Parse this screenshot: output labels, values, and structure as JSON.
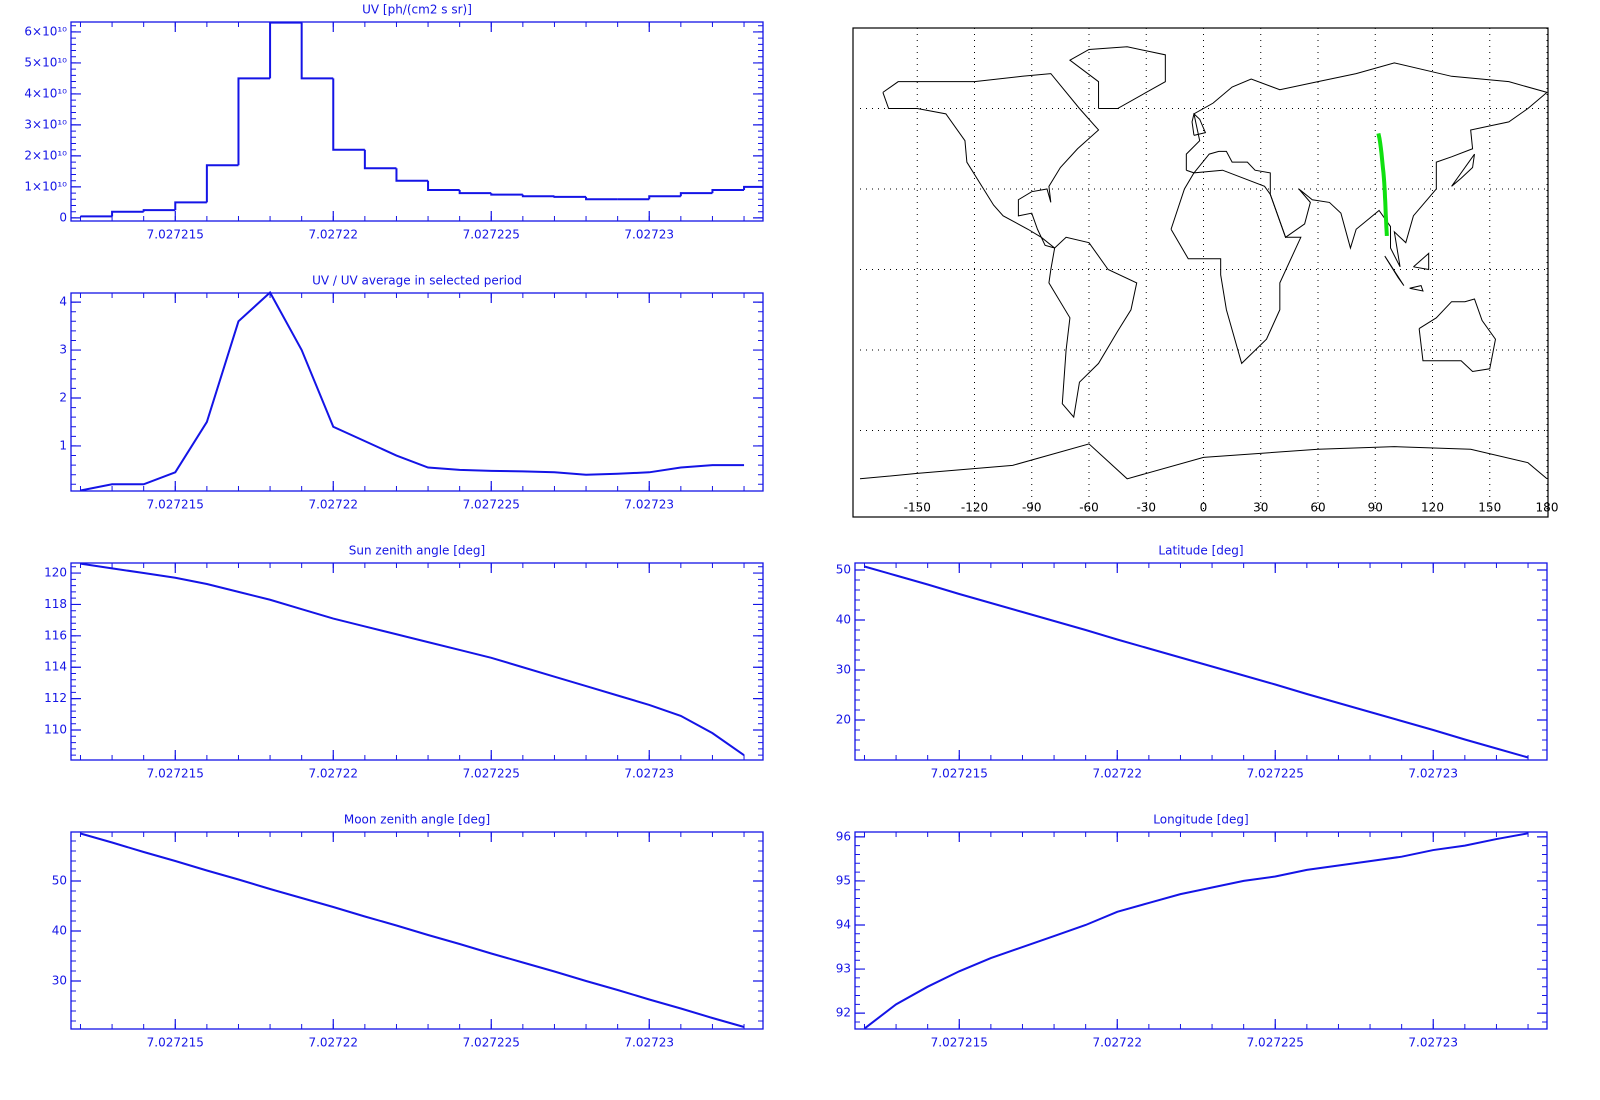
{
  "chart_data": [
    {
      "type": "line",
      "step": true,
      "title": "UV [ph/(cm2 s sr)]",
      "color": "#1414e6",
      "x": [
        7.027212,
        7.027213,
        7.027214,
        7.027215,
        7.027216,
        7.027217,
        7.027218,
        7.027219,
        7.02722,
        7.027221,
        7.027222,
        7.027223,
        7.027224,
        7.027225,
        7.027226,
        7.027227,
        7.027228,
        7.027229,
        7.02723,
        7.027231,
        7.027232,
        7.027233
      ],
      "values": [
        500000000,
        2000000000,
        2500000000,
        5000000000,
        17000000000,
        45000000000,
        63000000000,
        45000000000,
        22000000000,
        16000000000,
        12000000000,
        9000000000,
        8000000000,
        7500000000,
        7000000000,
        6800000000,
        6000000000,
        6000000000,
        7000000000,
        8000000000,
        9000000000,
        10000000000
      ],
      "xlim": [
        7.0272117,
        7.0272336
      ],
      "xticks": [
        7.027215,
        7.02722,
        7.027225,
        7.02723
      ],
      "ylim": [
        -1000000000,
        63200000000
      ],
      "yticks": [
        0,
        {
          "value": 10000000000,
          "label": "1×10¹⁰"
        },
        {
          "value": 20000000000,
          "label": "2×10¹⁰"
        },
        {
          "value": 30000000000,
          "label": "3×10¹⁰"
        },
        {
          "value": 40000000000,
          "label": "4×10¹⁰"
        },
        {
          "value": 50000000000,
          "label": "5×10¹⁰"
        },
        {
          "value": 60000000000,
          "label": "6×10¹⁰"
        }
      ]
    },
    {
      "type": "line",
      "title": "UV / UV average in selected period",
      "color": "#1414e6",
      "x": [
        7.027212,
        7.027213,
        7.027214,
        7.027215,
        7.027216,
        7.027217,
        7.027218,
        7.027219,
        7.02722,
        7.027221,
        7.027222,
        7.027223,
        7.027224,
        7.027225,
        7.027226,
        7.027227,
        7.027228,
        7.027229,
        7.02723,
        7.027231,
        7.027232,
        7.027233
      ],
      "values": [
        0.07,
        0.2,
        0.2,
        0.45,
        1.5,
        3.6,
        4.2,
        3.0,
        1.4,
        1.1,
        0.8,
        0.55,
        0.5,
        0.48,
        0.47,
        0.45,
        0.4,
        0.42,
        0.45,
        0.55,
        0.6,
        0.6
      ],
      "xlim": [
        7.0272117,
        7.0272336
      ],
      "xticks": [
        7.027215,
        7.02722,
        7.027225,
        7.02723
      ],
      "ylim": [
        0.06,
        4.19
      ],
      "yticks": [
        1,
        2,
        3,
        4
      ]
    },
    {
      "type": "line",
      "title": "Sun zenith angle [deg]",
      "color": "#1414e6",
      "x": [
        7.027212,
        7.027213,
        7.027214,
        7.027215,
        7.027216,
        7.027217,
        7.027218,
        7.027219,
        7.02722,
        7.027221,
        7.027222,
        7.027223,
        7.027224,
        7.027225,
        7.027226,
        7.027227,
        7.027228,
        7.027229,
        7.02723,
        7.027231,
        7.027232,
        7.027233
      ],
      "values": [
        120.6,
        120.3,
        120.0,
        119.7,
        119.3,
        118.8,
        118.3,
        117.7,
        117.1,
        116.6,
        116.1,
        115.6,
        115.1,
        114.6,
        114.0,
        113.4,
        112.8,
        112.2,
        111.6,
        110.9,
        109.8,
        108.4
      ],
      "xlim": [
        7.0272117,
        7.0272336
      ],
      "xticks": [
        7.027215,
        7.02722,
        7.027225,
        7.02723
      ],
      "ylim": [
        108.09,
        120.64
      ],
      "yticks": [
        110,
        112,
        114,
        116,
        118,
        120
      ]
    },
    {
      "type": "line",
      "title": "Latitude [deg]",
      "color": "#1414e6",
      "x": [
        7.027212,
        7.027213,
        7.027214,
        7.027215,
        7.027216,
        7.027217,
        7.027218,
        7.027219,
        7.02722,
        7.027221,
        7.027222,
        7.027223,
        7.027224,
        7.027225,
        7.027226,
        7.027227,
        7.027228,
        7.027229,
        7.02723,
        7.027231,
        7.027232,
        7.027233
      ],
      "values": [
        50.7,
        48.9,
        47.1,
        45.2,
        43.4,
        41.6,
        39.8,
        38.0,
        36.1,
        34.3,
        32.5,
        30.7,
        28.9,
        27.1,
        25.2,
        23.4,
        21.6,
        19.8,
        18.0,
        16.1,
        14.3,
        12.5
      ],
      "xlim": [
        7.0272117,
        7.0272336
      ],
      "xticks": [
        7.027215,
        7.02722,
        7.027225,
        7.02723
      ],
      "ylim": [
        12.0,
        51.4
      ],
      "yticks": [
        20,
        30,
        40,
        50
      ]
    },
    {
      "type": "line",
      "title": "Moon zenith angle [deg]",
      "color": "#1414e6",
      "x": [
        7.027212,
        7.027213,
        7.027214,
        7.027215,
        7.027216,
        7.027217,
        7.027218,
        7.027219,
        7.02722,
        7.027221,
        7.027222,
        7.027223,
        7.027224,
        7.027225,
        7.027226,
        7.027227,
        7.027228,
        7.027229,
        7.02723,
        7.027231,
        7.027232,
        7.027233
      ],
      "values": [
        59.5,
        57.7,
        55.8,
        54.0,
        52.1,
        50.3,
        48.4,
        46.6,
        44.8,
        42.9,
        41.1,
        39.2,
        37.4,
        35.5,
        33.7,
        31.9,
        30.0,
        28.2,
        26.3,
        24.5,
        22.6,
        20.8
      ],
      "xlim": [
        7.0272117,
        7.0272336
      ],
      "xticks": [
        7.027215,
        7.02722,
        7.027225,
        7.02723
      ],
      "ylim": [
        20.4,
        59.8
      ],
      "yticks": [
        30,
        40,
        50
      ]
    },
    {
      "type": "line",
      "title": "Longitude [deg]",
      "color": "#1414e6",
      "x": [
        7.027212,
        7.027213,
        7.027214,
        7.027215,
        7.027216,
        7.027217,
        7.027218,
        7.027219,
        7.02722,
        7.027221,
        7.027222,
        7.027223,
        7.027224,
        7.027225,
        7.027226,
        7.027227,
        7.027228,
        7.027229,
        7.02723,
        7.027231,
        7.027232,
        7.027233
      ],
      "values": [
        91.65,
        92.2,
        92.6,
        92.95,
        93.25,
        93.5,
        93.75,
        94.0,
        94.3,
        94.5,
        94.7,
        94.85,
        95.0,
        95.1,
        95.25,
        95.35,
        95.45,
        95.55,
        95.7,
        95.8,
        95.95,
        96.08
      ],
      "xlim": [
        7.0272117,
        7.0272336
      ],
      "xticks": [
        7.027215,
        7.02722,
        7.027225,
        7.02723
      ],
      "ylim": [
        91.64,
        96.11
      ],
      "yticks": [
        92,
        93,
        94,
        95,
        96
      ]
    },
    {
      "type": "map",
      "color": "#10e010",
      "grid": true,
      "xlim": [
        -180,
        180
      ],
      "ylim": [
        -90,
        90
      ],
      "xticks": [
        -150,
        -120,
        -90,
        -60,
        -30,
        0,
        30,
        60,
        90,
        120,
        150,
        180
      ],
      "yticks": [
        -60,
        -30,
        0,
        30,
        60
      ]
    }
  ]
}
